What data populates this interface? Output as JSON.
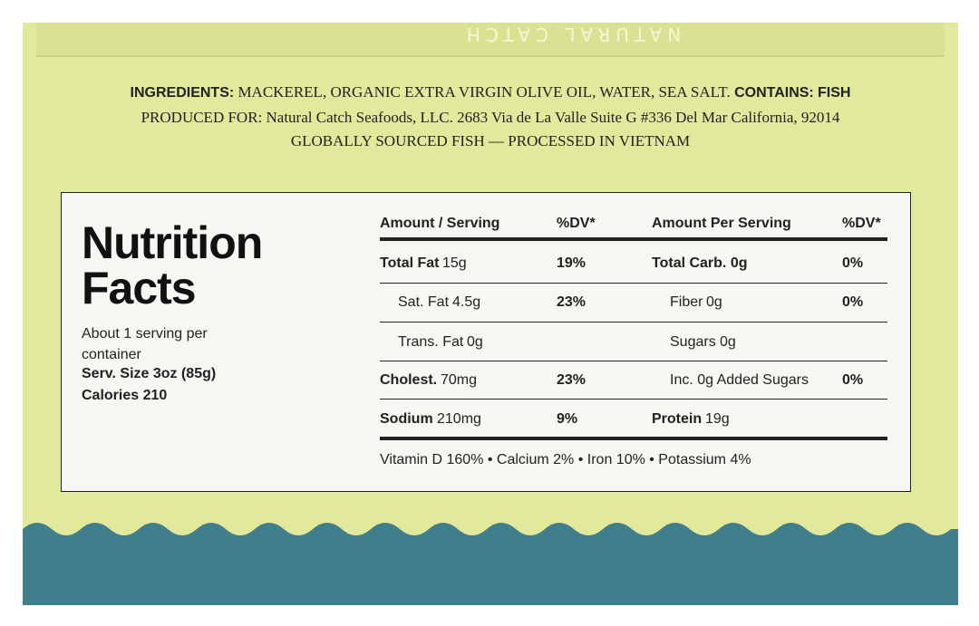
{
  "top_brand": "NATURAL CATCH",
  "ingredients": {
    "label": "INGREDIENTS:",
    "text": "MACKEREL, ORGANIC EXTRA VIRGIN OLIVE OIL, WATER, SEA SALT.",
    "contains_label": "CONTAINS:",
    "contains": "FISH"
  },
  "produced_for": "PRODUCED FOR: Natural Catch Seafoods, LLC. 2683 Via de La Valle Suite G #336 Del Mar California, 92014",
  "sourcing": "GLOBALLY SOURCED FISH — PROCESSED IN VIETNAM",
  "nutrition": {
    "title_line1": "Nutrition",
    "title_line2": "Facts",
    "servings": "About 1 serving per container",
    "serving_size": "Serv. Size 3oz (85g)",
    "calories": "Calories 210",
    "headers": [
      "Amount / Serving",
      "%DV*",
      "Amount Per Serving",
      "%DV*"
    ],
    "left_rows": [
      {
        "name": "Total Fat",
        "amount": "15g",
        "dv": "19%",
        "bold": true
      },
      {
        "name": "Sat. Fat",
        "amount": "4.5g",
        "dv": "23%",
        "indent": true
      },
      {
        "name": "Trans. Fat",
        "amount": "0g",
        "indent": true
      },
      {
        "name": "Cholest.",
        "amount": "70mg",
        "dv": "23%",
        "bold": true
      },
      {
        "name": "Sodium",
        "amount": "210mg",
        "dv": "9%",
        "bold": true
      }
    ],
    "right_rows": [
      {
        "name": "Total Carb. 0g",
        "dv": "0%",
        "bold": true
      },
      {
        "name": "Fiber",
        "amount": "0g",
        "dv": "0%",
        "indent": true
      },
      {
        "name": "Sugars",
        "amount": "0g",
        "indent": true
      },
      {
        "name": "Inc. 0g Added Sugars",
        "dv": "0%",
        "indent": true
      },
      {
        "name": "Protein",
        "amount": "19g",
        "bold": true
      }
    ],
    "vitamins": "Vitamin D 160% • Calcium 2% • Iron 10% • Potassium 4%"
  }
}
